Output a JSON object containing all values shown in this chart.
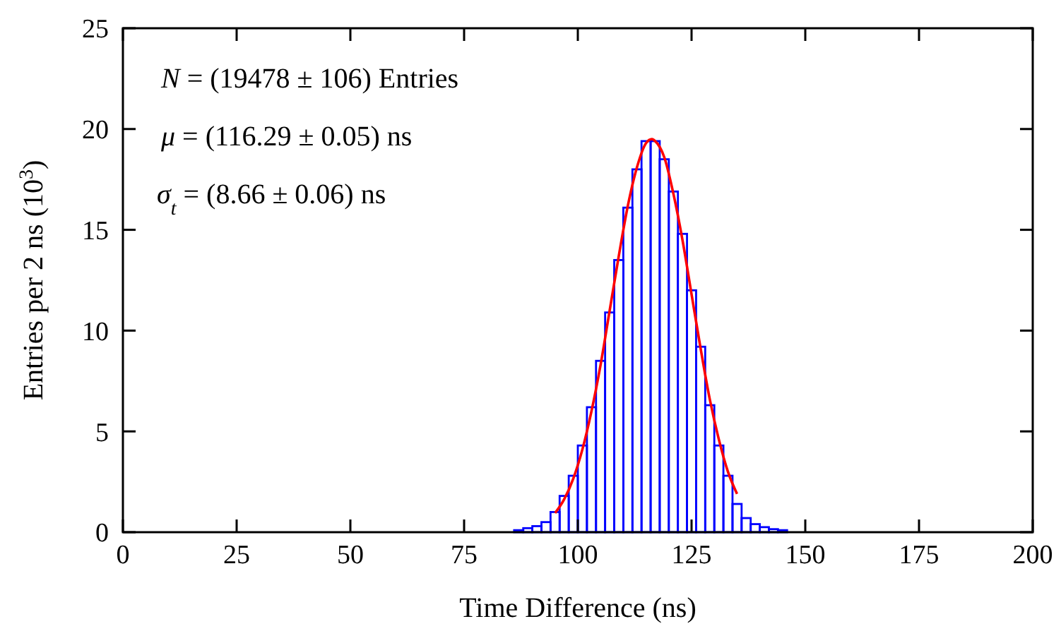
{
  "chart_data": {
    "type": "histogram",
    "xlabel": "Time Difference (ns)",
    "ylabel": "Entries per 2 ns (10$^{3}$)",
    "xlim": [
      0,
      200
    ],
    "xticks": [
      0,
      25,
      50,
      75,
      100,
      125,
      150,
      175,
      200
    ],
    "ylim": [
      0,
      25
    ],
    "yticks": [
      0,
      5,
      10,
      15,
      20,
      25
    ],
    "annotations": [
      "N = (19478 ± 106) Entries",
      "μ = (116.29 ± 0.05) ns",
      "σ$_{t}$ = (8.66 ± 0.06) ns"
    ],
    "color": "#0000ff",
    "bins": [
      86,
      88,
      90,
      92,
      94,
      96,
      98,
      100,
      102,
      104,
      106,
      108,
      110,
      112,
      114,
      116,
      118,
      120,
      122,
      124,
      126,
      128,
      130,
      132,
      134,
      136,
      138,
      140,
      142,
      144,
      146
    ],
    "values": [
      0.1,
      0.2,
      0.3,
      0.5,
      1.0,
      1.8,
      2.8,
      4.3,
      6.2,
      8.5,
      10.9,
      13.5,
      16.1,
      18.0,
      19.4,
      19.4,
      18.5,
      16.9,
      14.8,
      12.0,
      9.2,
      6.3,
      4.3,
      2.8,
      1.4,
      0.7,
      0.4,
      0.25,
      0.15,
      0.1
    ],
    "series": [
      {
        "type": "line",
        "color": "#ff0000",
        "x": [
          95,
          97,
          99,
          101,
          103,
          105,
          107,
          109,
          111,
          113,
          115,
          116.29,
          117,
          119,
          121,
          123,
          125,
          127,
          129,
          131,
          133,
          135
        ],
        "values": [
          0.95,
          1.63,
          2.66,
          4.1,
          6.0,
          8.3,
          11.0,
          13.7,
          16.2,
          18.1,
          19.3,
          19.5,
          19.4,
          18.6,
          16.8,
          14.5,
          11.8,
          9.1,
          6.6,
          4.6,
          3.0,
          1.9
        ]
      }
    ]
  }
}
